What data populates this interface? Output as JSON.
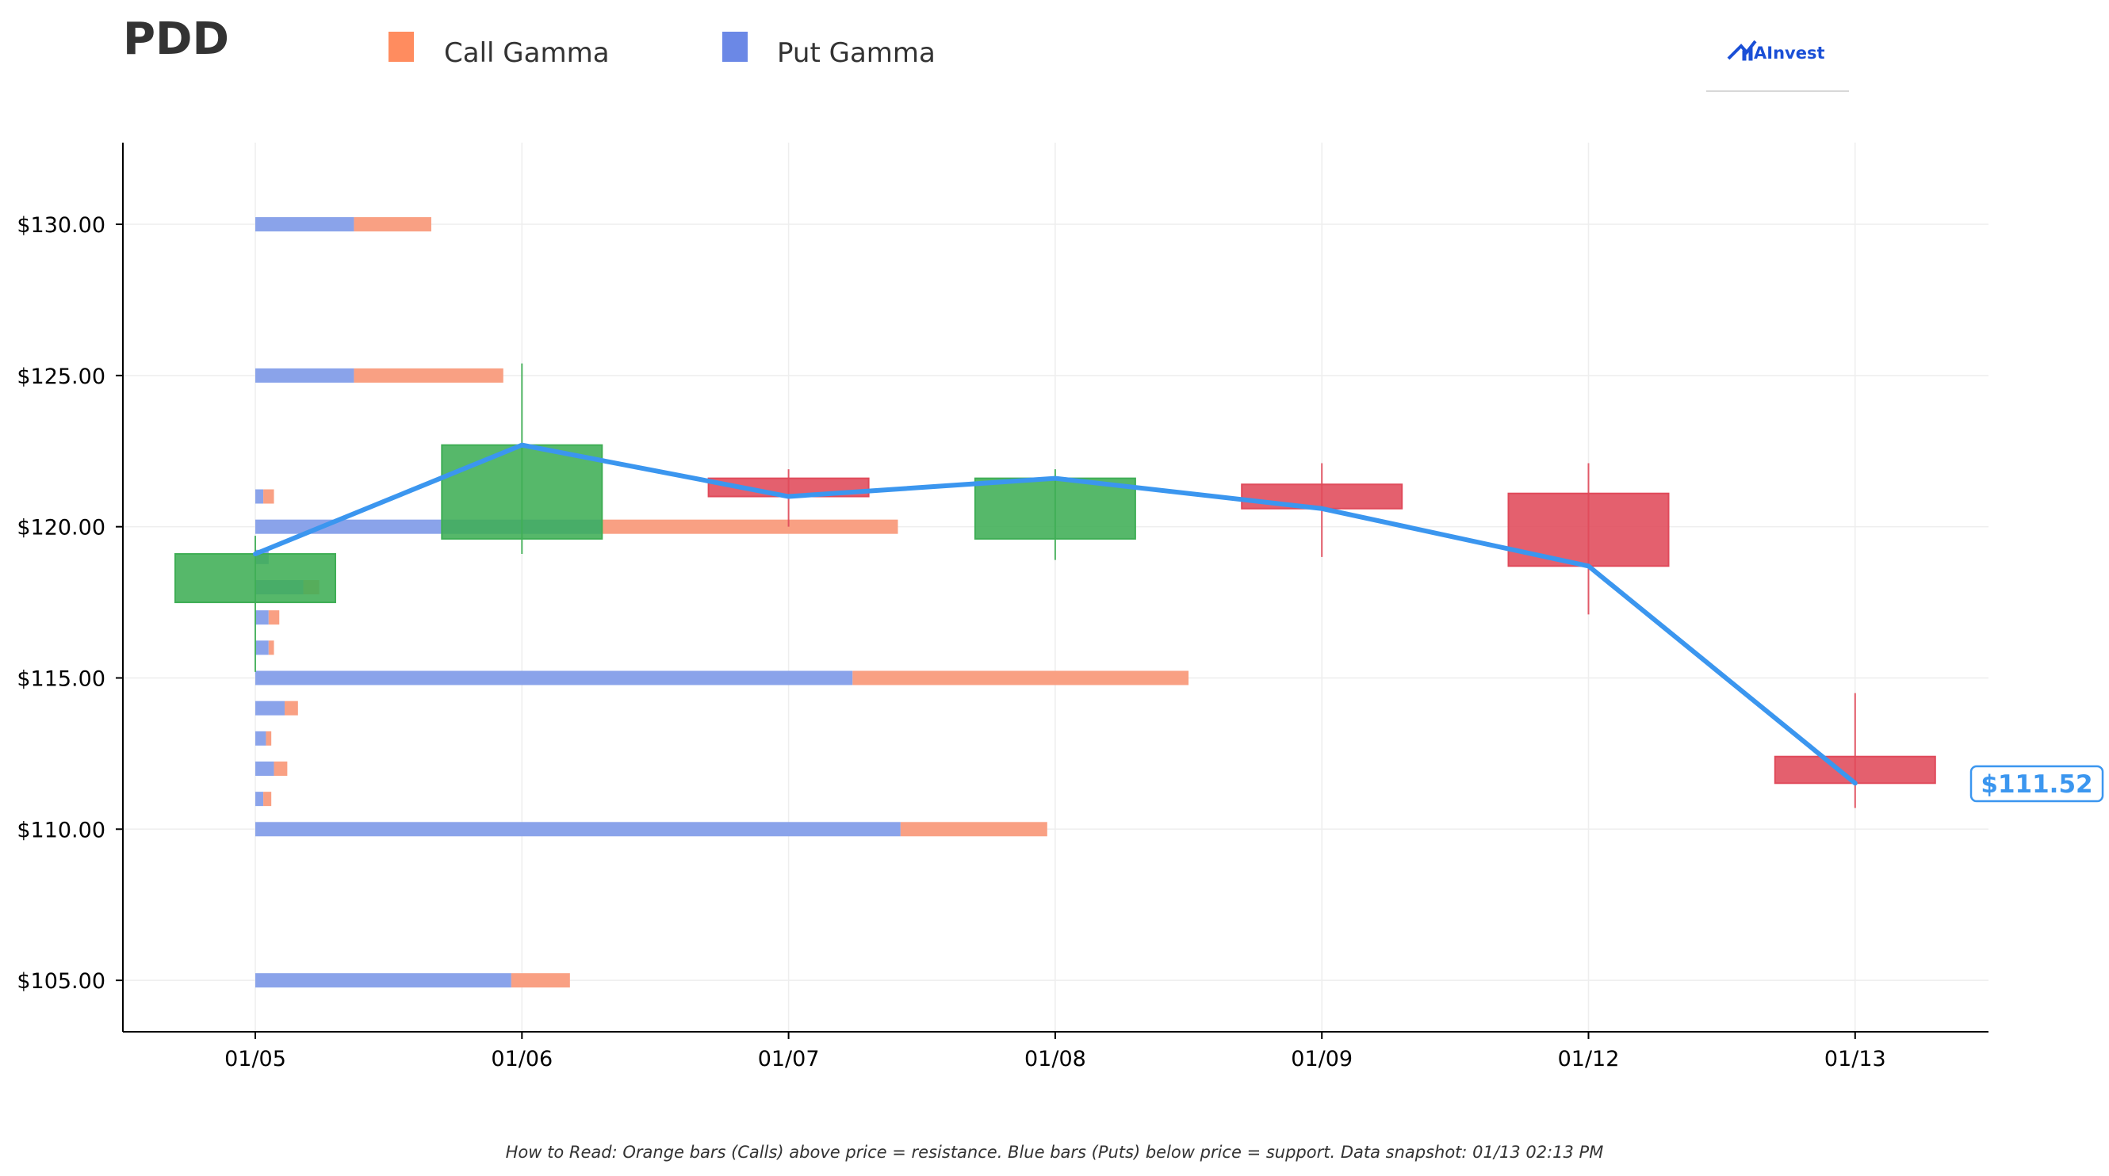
{
  "ticker": "PDD",
  "brand": {
    "name": "AInvest",
    "color": "#1a4fd6"
  },
  "legend": [
    {
      "label": "Call Gamma",
      "color": "#ff8c5f"
    },
    {
      "label": "Put Gamma",
      "color": "#6b88e6"
    }
  ],
  "footnote": "How to Read: Orange bars (Calls) above price = resistance. Blue bars (Puts) below price = support. Data snapshot: 01/13 02:13 PM",
  "colors": {
    "up": "#3fae55",
    "down": "#e04a5a",
    "line": "#3b96ef",
    "call": "#f9a083",
    "put": "#8aa3ea",
    "grid": "#eeeeee"
  },
  "chart_data": {
    "type": "candlestick",
    "categories": [
      "01/05",
      "01/06",
      "01/07",
      "01/08",
      "01/09",
      "01/12",
      "01/13"
    ],
    "ylim": [
      103.3,
      132.7
    ],
    "yticks": [
      105,
      110,
      115,
      120,
      125,
      130
    ],
    "ytick_labels": [
      "$105.00",
      "$110.00",
      "$115.00",
      "$120.00",
      "$125.00",
      "$130.00"
    ],
    "grid": true,
    "legend_position": "top-left",
    "candles": [
      {
        "date": "01/05",
        "open": 117.5,
        "close": 119.1,
        "high": 119.7,
        "low": 115.2
      },
      {
        "date": "01/06",
        "open": 119.6,
        "close": 122.7,
        "high": 125.4,
        "low": 119.1
      },
      {
        "date": "01/07",
        "open": 121.6,
        "close": 121.0,
        "high": 121.9,
        "low": 120.0
      },
      {
        "date": "01/08",
        "open": 119.6,
        "close": 121.6,
        "high": 121.9,
        "low": 118.9
      },
      {
        "date": "01/09",
        "open": 121.4,
        "close": 120.6,
        "high": 122.1,
        "low": 119.0
      },
      {
        "date": "01/12",
        "open": 121.1,
        "close": 118.7,
        "high": 122.1,
        "low": 117.1
      },
      {
        "date": "01/13",
        "open": 112.4,
        "close": 111.52,
        "high": 114.5,
        "low": 110.7
      }
    ],
    "price_line": [
      119.1,
      122.7,
      121.0,
      121.6,
      120.6,
      118.7,
      111.52
    ],
    "last_price_label": "$111.52",
    "gamma_unit_note": "bar lengths measured in trading days along the x axis from 01/05",
    "gamma_bars": [
      {
        "strike": 130,
        "put": 0.37,
        "call": 0.29
      },
      {
        "strike": 125,
        "put": 0.37,
        "call": 0.56
      },
      {
        "strike": 121,
        "put": 0.03,
        "call": 0.04
      },
      {
        "strike": 120,
        "put": 1.3,
        "call": 1.11
      },
      {
        "strike": 119,
        "put": 0.05,
        "call": 0.0
      },
      {
        "strike": 118,
        "put": 0.18,
        "call": 0.06
      },
      {
        "strike": 117,
        "put": 0.05,
        "call": 0.04
      },
      {
        "strike": 116,
        "put": 0.05,
        "call": 0.02
      },
      {
        "strike": 115,
        "put": 2.24,
        "call": 1.26
      },
      {
        "strike": 114,
        "put": 0.11,
        "call": 0.05
      },
      {
        "strike": 113,
        "put": 0.04,
        "call": 0.02
      },
      {
        "strike": 112,
        "put": 0.07,
        "call": 0.05
      },
      {
        "strike": 111,
        "put": 0.03,
        "call": 0.03
      },
      {
        "strike": 110,
        "put": 2.42,
        "call": 0.55
      },
      {
        "strike": 105,
        "put": 0.96,
        "call": 0.22
      }
    ]
  }
}
